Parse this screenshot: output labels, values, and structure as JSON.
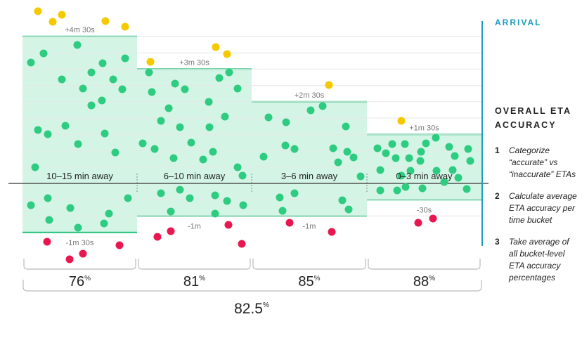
{
  "colors": {
    "band_fill": "#cdf3e2",
    "band_stroke": "#22c27a",
    "on_time": "#2ecc80",
    "early_late": "#f5c800",
    "inaccurate_low": "#e8174f",
    "arrival": "#1a9bbf",
    "label_grey": "#777777"
  },
  "sidebar": {
    "arrival_label": "ARRIVAL",
    "title": "OVERALL ETA ACCURACY",
    "steps": [
      {
        "num": "1",
        "text": "Categorize “accurate” vs “inaccurate” ETAs"
      },
      {
        "num": "2",
        "text": "Calculate average ETA accuracy per time bucket"
      },
      {
        "num": "3",
        "text": "Take average of all bucket-level ETA accuracy percentages"
      }
    ]
  },
  "chart_data": {
    "type": "scatter",
    "buckets": [
      {
        "label": "10–15 min away",
        "upper": "+4m 30s",
        "lower": "-1m 30s",
        "upper_sec": 270,
        "lower_sec": -90,
        "accuracy": "76",
        "percent_sign": "%"
      },
      {
        "label": "6–10 min away",
        "upper": "+3m 30s",
        "lower": "-1m",
        "upper_sec": 210,
        "lower_sec": -60,
        "accuracy": "81",
        "percent_sign": "%"
      },
      {
        "label": "3–6 min away",
        "upper": "+2m 30s",
        "lower": "-1m",
        "upper_sec": 150,
        "lower_sec": -60,
        "accuracy": "85",
        "percent_sign": "%"
      },
      {
        "label": "0–3 min away",
        "upper": "+1m 30s",
        "lower": "-30s",
        "upper_sec": 90,
        "lower_sec": -30,
        "accuracy": "88",
        "percent_sign": "%"
      }
    ],
    "overall": {
      "value": "82.5",
      "percent_sign": "%"
    }
  }
}
